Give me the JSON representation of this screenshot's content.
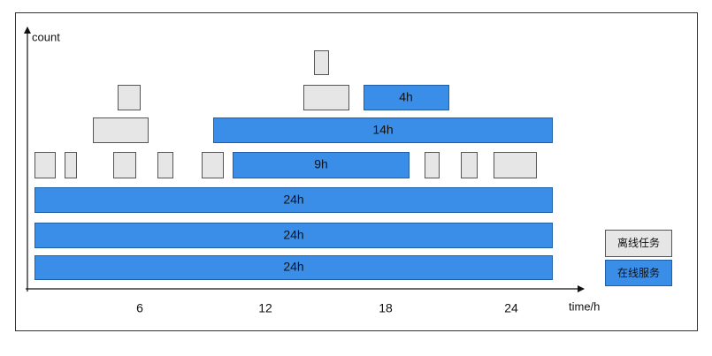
{
  "axis": {
    "y_label": "count",
    "x_label": "time/h",
    "x_ticks": [
      "6",
      "12",
      "18",
      "24"
    ]
  },
  "bars": [
    "24h",
    "24h",
    "24h",
    "9h",
    "14h",
    "4h"
  ],
  "legend": [
    "离线任务",
    "在线服务"
  ]
}
